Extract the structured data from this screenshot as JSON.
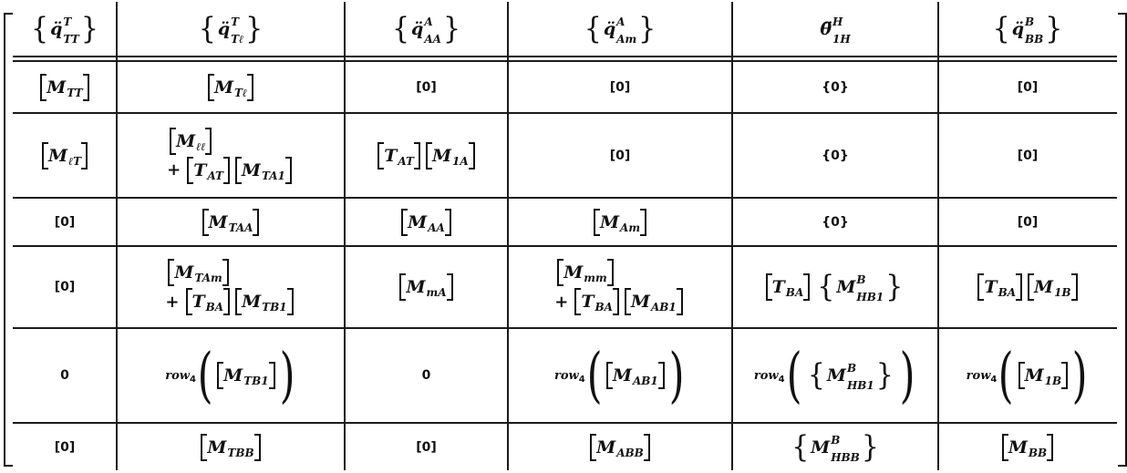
{
  "header": [
    {
      "wrap": "brace",
      "base": "q̈",
      "sup": "T",
      "sub": "TT"
    },
    {
      "wrap": "brace",
      "base": "q̈",
      "sup": "T",
      "sub": "Tℓ"
    },
    {
      "wrap": "brace",
      "base": "q̈",
      "sup": "A",
      "sub": "AA"
    },
    {
      "wrap": "brace",
      "base": "q̈",
      "sup": "A",
      "sub": "Am"
    },
    {
      "wrap": "none",
      "base": "θ̈",
      "sup": "H",
      "sub": "1H"
    },
    {
      "wrap": "brace",
      "base": "q̈",
      "sup": "B",
      "sub": "BB"
    }
  ],
  "rows": [
    [
      [
        [
          {
            "wrap": "bracket",
            "base": "M",
            "sub": "TT"
          }
        ]
      ],
      [
        [
          {
            "wrap": "bracket",
            "base": "M",
            "sub": "Tℓ"
          }
        ]
      ],
      [
        [
          {
            "text": "[0]"
          }
        ]
      ],
      [
        [
          {
            "text": "[0]"
          }
        ]
      ],
      [
        [
          {
            "text": "{0}"
          }
        ]
      ],
      [
        [
          {
            "text": "[0]"
          }
        ]
      ]
    ],
    [
      [
        [
          {
            "wrap": "bracket",
            "base": "M",
            "sub": "ℓT"
          }
        ]
      ],
      [
        [
          {
            "wrap": "bracket",
            "base": "M",
            "sub": "ℓℓ"
          }
        ],
        [
          {
            "op": "+"
          },
          {
            "wrap": "bracket",
            "base": "T",
            "sub": "AT"
          },
          {
            "wrap": "bracket",
            "base": "M",
            "sub": "TA1"
          }
        ]
      ],
      [
        [
          {
            "wrap": "bracket",
            "base": "T",
            "sub": "AT"
          },
          {
            "wrap": "bracket",
            "base": "M",
            "sub": "1A"
          }
        ]
      ],
      [
        [
          {
            "text": "[0]"
          }
        ]
      ],
      [
        [
          {
            "text": "{0}"
          }
        ]
      ],
      [
        [
          {
            "text": "[0]"
          }
        ]
      ]
    ],
    [
      [
        [
          {
            "text": "[0]"
          }
        ]
      ],
      [
        [
          {
            "wrap": "bracket",
            "base": "M",
            "sub": "TAA"
          }
        ]
      ],
      [
        [
          {
            "wrap": "bracket",
            "base": "M",
            "sub": "AA"
          }
        ]
      ],
      [
        [
          {
            "wrap": "bracket",
            "base": "M",
            "sub": "Am"
          }
        ]
      ],
      [
        [
          {
            "text": "{0}"
          }
        ]
      ],
      [
        [
          {
            "text": "[0]"
          }
        ]
      ]
    ],
    [
      [
        [
          {
            "text": "[0]"
          }
        ]
      ],
      [
        [
          {
            "wrap": "bracket",
            "base": "M",
            "sub": "TAm"
          }
        ],
        [
          {
            "op": "+"
          },
          {
            "wrap": "bracket",
            "base": "T",
            "sub": "BA"
          },
          {
            "wrap": "bracket",
            "base": "M",
            "sub": "TB1"
          }
        ]
      ],
      [
        [
          {
            "wrap": "bracket",
            "base": "M",
            "sub": "mA"
          }
        ]
      ],
      [
        [
          {
            "wrap": "bracket",
            "base": "M",
            "sub": "mm"
          }
        ],
        [
          {
            "op": "+"
          },
          {
            "wrap": "bracket",
            "base": "T",
            "sub": "BA"
          },
          {
            "wrap": "bracket",
            "base": "M",
            "sub": "AB1"
          }
        ]
      ],
      [
        [
          {
            "wrap": "bracket",
            "base": "T",
            "sub": "BA"
          },
          {
            "wrap": "brace",
            "base": "M",
            "sup": "B",
            "sub": "HB1"
          }
        ]
      ],
      [
        [
          {
            "wrap": "bracket",
            "base": "T",
            "sub": "BA"
          },
          {
            "wrap": "bracket",
            "base": "M",
            "sub": "1B"
          }
        ]
      ]
    ],
    [
      [
        [
          {
            "text": "0"
          }
        ]
      ],
      [
        [
          {
            "fn": "row",
            "fnsub": "4",
            "arg": {
              "wrap": "bracket",
              "base": "M",
              "sub": "TB1"
            }
          }
        ]
      ],
      [
        [
          {
            "text": "0"
          }
        ]
      ],
      [
        [
          {
            "fn": "row",
            "fnsub": "4",
            "arg": {
              "wrap": "bracket",
              "base": "M",
              "sub": "AB1"
            }
          }
        ]
      ],
      [
        [
          {
            "fn": "row",
            "fnsub": "4",
            "arg": {
              "wrap": "brace",
              "base": "M",
              "sup": "B",
              "sub": "HB1"
            }
          }
        ]
      ],
      [
        [
          {
            "fn": "row",
            "fnsub": "4",
            "arg": {
              "wrap": "bracket",
              "base": "M",
              "sub": "1B"
            }
          }
        ]
      ]
    ],
    [
      [
        [
          {
            "text": "[0]"
          }
        ]
      ],
      [
        [
          {
            "wrap": "bracket",
            "base": "M",
            "sub": "TBB"
          }
        ]
      ],
      [
        [
          {
            "text": "[0]"
          }
        ]
      ],
      [
        [
          {
            "wrap": "bracket",
            "base": "M",
            "sub": "ABB"
          }
        ]
      ],
      [
        [
          {
            "wrap": "brace",
            "base": "M",
            "sup": "B",
            "sub": "HBB"
          }
        ]
      ],
      [
        [
          {
            "wrap": "bracket",
            "base": "M",
            "sub": "BB"
          }
        ]
      ]
    ]
  ]
}
